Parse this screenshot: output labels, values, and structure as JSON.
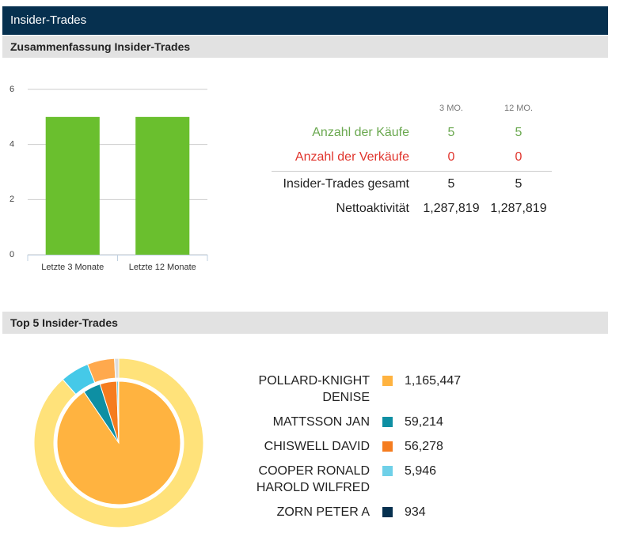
{
  "header": {
    "title": "Insider-Trades"
  },
  "sections": [
    "Zusammenfassung Insider-Trades",
    "Top 5 Insider-Trades"
  ],
  "summary_table": {
    "columns": [
      "3 MO.",
      "12 MO."
    ],
    "rows": [
      [
        "Anzahl der Käufe",
        "5",
        "5"
      ],
      [
        "Anzahl der Verkäufe",
        "0",
        "0"
      ],
      [
        "Insider-Trades gesamt",
        "5",
        "5"
      ],
      [
        "Nettoaktivität",
        "1,287,819",
        "1,287,819"
      ]
    ]
  },
  "chart_data": [
    {
      "type": "bar",
      "categories": [
        "Letzte 3 Monate",
        "Letzte 12 Monate"
      ],
      "values": [
        5,
        5
      ],
      "color": "#6abf2e",
      "ylim": [
        0,
        6
      ],
      "yticks": [
        0,
        2,
        4,
        6
      ],
      "grid": true
    },
    {
      "type": "pie",
      "labels": [
        "POLLARD-KNIGHT DENISE",
        "MATTSSON JAN",
        "CHISWELL DAVID",
        "COOPER RONALD HAROLD WILFRED",
        "ZORN PETER A"
      ],
      "values": [
        1165447,
        59214,
        56278,
        5946,
        934
      ],
      "value_labels": [
        "1,165,447",
        "59,214",
        "56,278",
        "5,946",
        "934"
      ],
      "colors": [
        "#ffb340",
        "#0e8fa3",
        "#f57c1f",
        "#6fd0e8",
        "#06304f"
      ],
      "outer_values": [
        88.5,
        5.5,
        5.2,
        0.8
      ],
      "outer_colors": [
        "#ffe27a",
        "#45c9e8",
        "#ffa94d",
        "#dddddd"
      ]
    }
  ]
}
